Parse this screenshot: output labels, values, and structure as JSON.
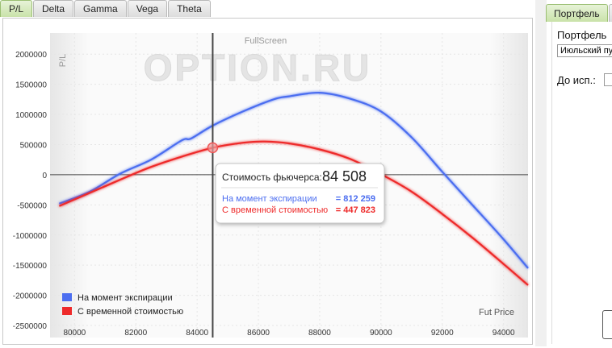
{
  "tabs": [
    {
      "label": "P/L",
      "active": true
    },
    {
      "label": "Delta",
      "active": false
    },
    {
      "label": "Gamma",
      "active": false
    },
    {
      "label": "Vega",
      "active": false
    },
    {
      "label": "Theta",
      "active": false
    }
  ],
  "chart": {
    "fullscreen_label": "FullScreen",
    "watermark": "OPTION.RU",
    "ylabel": "P/L",
    "xlabel": "Fut Price",
    "tooltip": {
      "title": "Стоимость фьючерса:",
      "price": "84 508",
      "line1_label": "На момент экспирации",
      "line1_value": "= 812 259",
      "line2_label": "С временной стоимостью",
      "line2_value": "= 447 823"
    }
  },
  "chart_data": {
    "type": "line",
    "xlabel": "Fut Price",
    "ylabel": "P/L",
    "xlim": [
      79200,
      94800
    ],
    "ylim": [
      -2700000,
      2350000
    ],
    "x_ticks": [
      "80000",
      "82000",
      "84000",
      "86000",
      "88000",
      "90000",
      "92000",
      "94000"
    ],
    "y_ticks": [
      "2000000",
      "1500000",
      "1000000",
      "500000",
      "0",
      "-500000",
      "-1000000",
      "-1500000",
      "-2000000",
      "-2500000"
    ],
    "crosshair_x": 84508,
    "colors": {
      "expiration": "#4c6ef0",
      "time_value": "#ee2a2a"
    },
    "series": [
      {
        "name": "На момент экспирации",
        "x": [
          79500,
          80500,
          81500,
          82500,
          83500,
          83800,
          84500,
          85500,
          86500,
          87000,
          88000,
          89000,
          90000,
          91000,
          92000,
          93000,
          94000,
          94800
        ],
        "values": [
          -480000,
          -280000,
          20000,
          250000,
          570000,
          600000,
          812259,
          1050000,
          1250000,
          1300000,
          1360000,
          1260000,
          1050000,
          620000,
          50000,
          -510000,
          -1070000,
          -1550000
        ]
      },
      {
        "name": "С временной стоимостью",
        "x": [
          79500,
          80500,
          81500,
          82500,
          83500,
          84508,
          85500,
          86200,
          87000,
          88000,
          89000,
          90000,
          91000,
          92000,
          93000,
          94000,
          94800
        ],
        "values": [
          -520000,
          -300000,
          -80000,
          130000,
          300000,
          447823,
          530000,
          550000,
          520000,
          420000,
          260000,
          10000,
          -280000,
          -650000,
          -1050000,
          -1480000,
          -1830000
        ]
      }
    ]
  },
  "right": {
    "tab_label": "Портфель",
    "portfolio_label": "Портфель",
    "portfolio_value": "Июльский пу",
    "expiry_label": "До исп.:"
  }
}
